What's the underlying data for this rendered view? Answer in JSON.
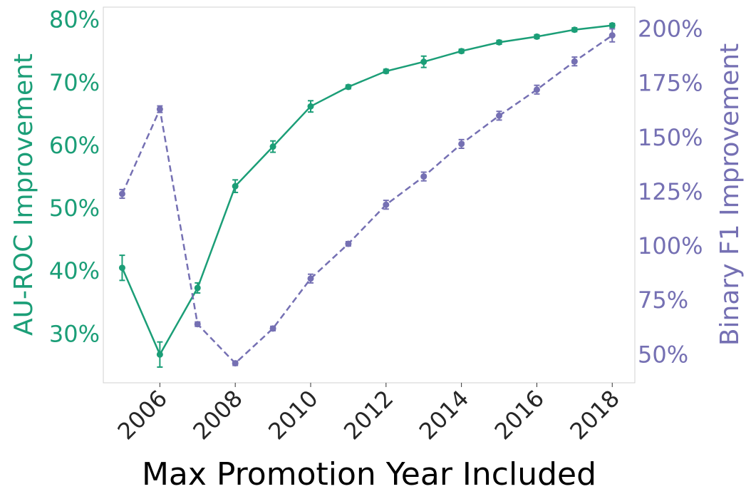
{
  "chart_data": {
    "type": "line",
    "xlabel": "Max Promotion Year Included",
    "ylabel_left": "AU-ROC Improvement",
    "ylabel_right": "Binary F1 Improvement",
    "x": [
      2005,
      2006,
      2007,
      2008,
      2009,
      2010,
      2011,
      2012,
      2013,
      2014,
      2015,
      2016,
      2017,
      2018
    ],
    "x_ticks": [
      2006,
      2008,
      2010,
      2012,
      2014,
      2016,
      2018
    ],
    "x_tick_labels": [
      "2006",
      "2008",
      "2010",
      "2012",
      "2014",
      "2016",
      "2018"
    ],
    "xlim": [
      2004.5,
      2018.6
    ],
    "y_left_ticks": [
      30,
      40,
      50,
      60,
      70,
      80
    ],
    "y_left_tick_labels": [
      "30%",
      "40%",
      "50%",
      "60%",
      "70%",
      "80%"
    ],
    "ylim_left": [
      22.2,
      82
    ],
    "y_right_ticks": [
      50,
      75,
      100,
      125,
      150,
      175,
      200
    ],
    "y_right_tick_labels": [
      "50%",
      "75%",
      "100%",
      "125%",
      "150%",
      "175%",
      "200%"
    ],
    "ylim_right": [
      37,
      210
    ],
    "grid": false,
    "series": [
      {
        "axis": "left",
        "color": "#1b9e77",
        "style": "solid",
        "values": [
          40.5,
          26.7,
          37.3,
          53.5,
          59.8,
          66.2,
          69.3,
          71.8,
          73.3,
          75.0,
          76.4,
          77.3,
          78.4,
          79.1
        ],
        "errors": [
          2.0,
          2.0,
          0.8,
          1.0,
          0.9,
          0.9,
          0.3,
          0.3,
          0.9,
          0.3,
          0.3,
          0.3,
          0.3,
          0.3
        ]
      },
      {
        "axis": "right",
        "color": "#7570b3",
        "style": "dashed",
        "values": [
          124,
          163,
          64,
          46,
          62,
          85,
          101,
          119,
          132,
          147,
          160,
          172,
          185,
          197
        ],
        "errors": [
          2,
          1.5,
          1,
          1,
          1,
          2,
          1,
          2,
          2,
          2,
          2,
          2,
          2,
          3
        ]
      }
    ]
  }
}
